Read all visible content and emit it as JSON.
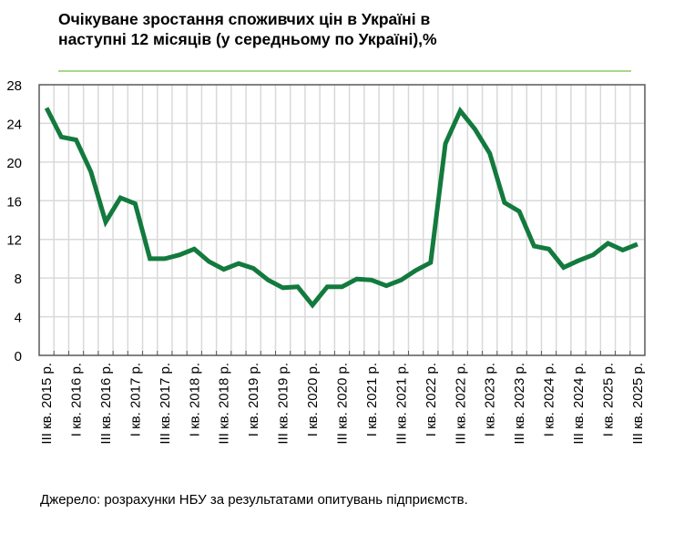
{
  "chart_data": {
    "type": "line",
    "title": "Очікуване зростання споживчих цін в Україні в наступні 12 місяців (у середньому по Україні),%",
    "title_lines": [
      "Очікуване зростання споживчих цін в Україні в",
      "наступні 12 місяців (у середньому по Україні),%"
    ],
    "xlabel": "",
    "ylabel": "",
    "ylim": [
      0,
      28
    ],
    "yticks": [
      0,
      4,
      8,
      12,
      16,
      20,
      24,
      28
    ],
    "grid": true,
    "legend": "none",
    "x_tick_labels": [
      "III кв. 2015 р.",
      "I кв. 2016 р.",
      "III кв. 2016 р.",
      "I кв. 2017 р.",
      "III кв. 2017 р.",
      "I кв. 2018 р.",
      "III кв. 2018 р.",
      "I кв. 2019 р.",
      "III кв. 2019 р.",
      "I кв. 2020 р.",
      "III кв. 2020 р.",
      "I кв. 2021 р.",
      "III кв. 2021 р.",
      "I кв. 2022 р.",
      "III кв. 2022 р.",
      "I кв. 2023 р.",
      "III кв. 2023 р.",
      "I кв. 2024 р.",
      "III кв. 2024 р.",
      "I кв. 2025 р.",
      "III кв. 2025 р."
    ],
    "x_range": [
      "III кв. 2015 р.",
      "III кв. 2025 р."
    ],
    "series": [
      {
        "color": "#137a3e",
        "values": [
          25.6,
          22.6,
          22.3,
          19.0,
          13.8,
          16.3,
          15.7,
          10.0,
          10.0,
          10.4,
          11.0,
          9.7,
          8.9,
          9.5,
          9.0,
          7.8,
          7.0,
          7.1,
          5.2,
          7.1,
          7.1,
          7.9,
          7.8,
          7.2,
          7.8,
          8.8,
          9.6,
          21.9,
          25.3,
          23.4,
          20.9,
          15.8,
          14.9,
          11.3,
          11.0,
          9.1,
          9.8,
          10.4,
          11.6,
          10.9,
          11.5
        ]
      }
    ],
    "source": "Джерело: розрахунки НБУ за результатами опитувань підприємств."
  },
  "colors": {
    "title_rule": "#a9d88a",
    "grid": "#d9d9d9",
    "axis": "#595959"
  }
}
